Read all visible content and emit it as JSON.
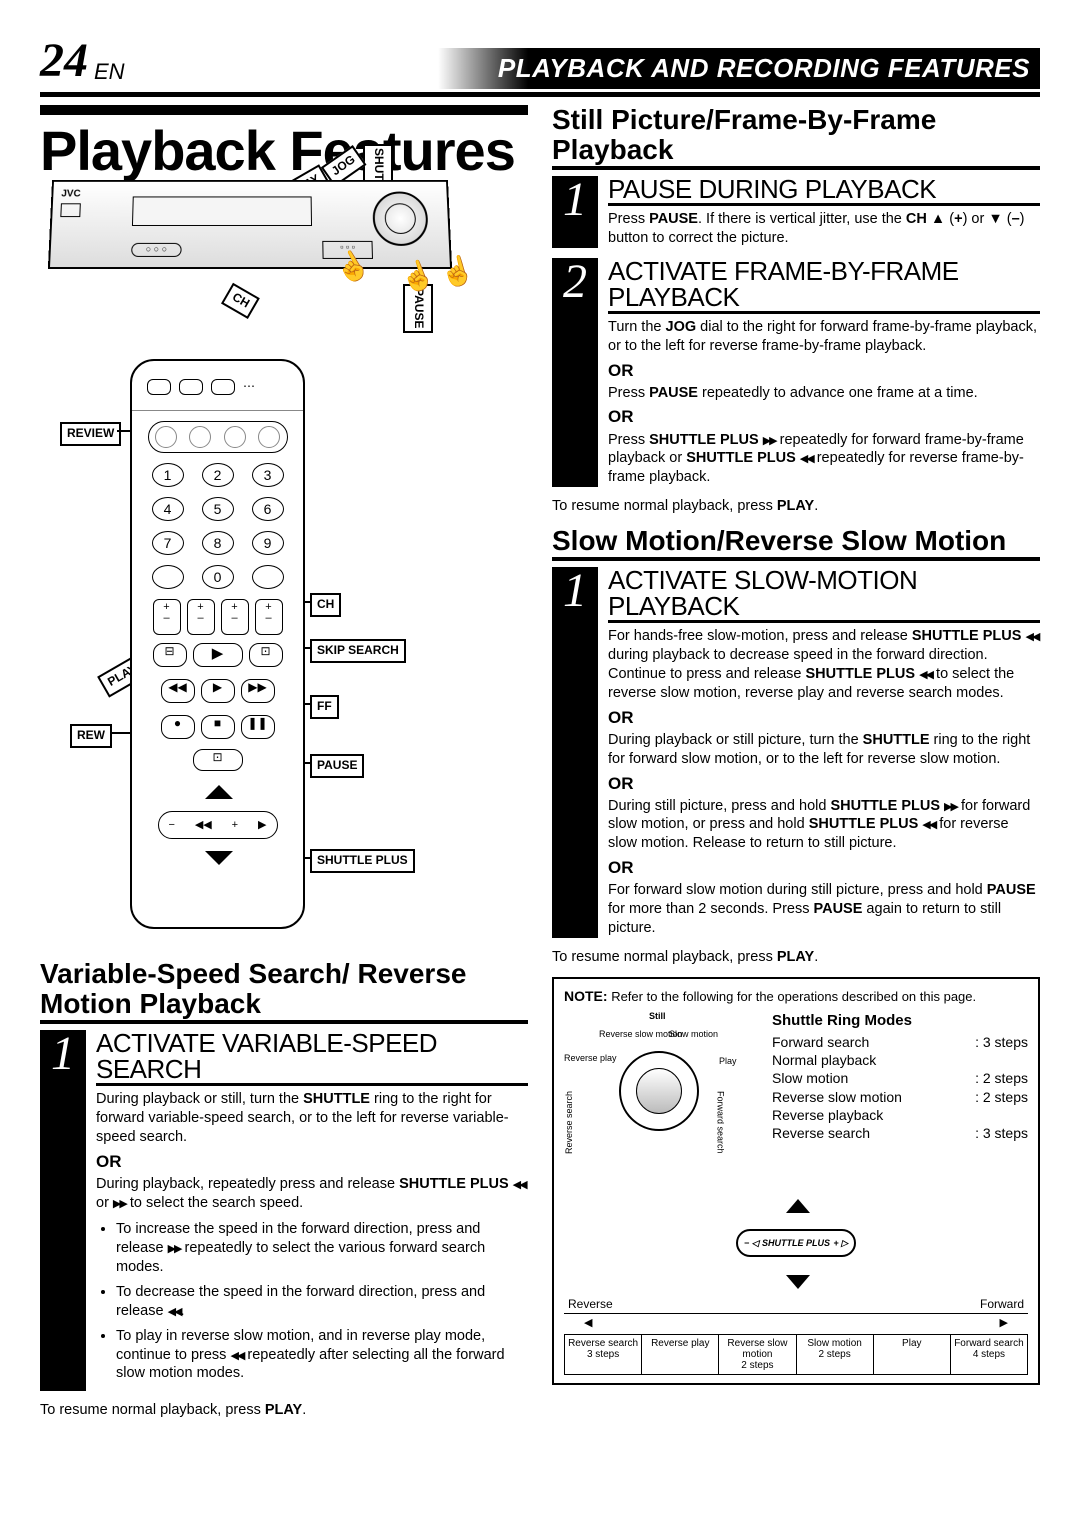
{
  "header": {
    "page_number": "24",
    "language": "EN",
    "title": "PLAYBACK AND RECORDING FEATURES"
  },
  "main_title": "Playback Features",
  "vcr_diagram": {
    "labels": {
      "shuttle": "SHUTTLE",
      "jog": "JOG",
      "play": "PLAY",
      "ch": "CH",
      "pause": "PAUSE"
    },
    "brand": "JVC"
  },
  "remote_diagram": {
    "labels": {
      "review": "REVIEW",
      "ch": "CH",
      "skip_search": "SKIP SEARCH",
      "play": "PLAY",
      "ff": "FF",
      "rew": "REW",
      "pause": "PAUSE",
      "shuttle_plus": "SHUTTLE PLUS"
    },
    "keypad": [
      "1",
      "2",
      "3",
      "4",
      "5",
      "6",
      "7",
      "8",
      "9",
      "",
      "0",
      ""
    ],
    "pm_row": [
      "+",
      "+",
      "+",
      "+",
      "–",
      "–",
      "–",
      "–"
    ]
  },
  "left_section": {
    "heading": "Variable-Speed Search/ Reverse Motion Playback",
    "step1": {
      "num": "1",
      "title": "ACTIVATE VARIABLE-SPEED SEARCH",
      "p1": "During playback or still, turn the <b>SHUTTLE</b> ring to the right for forward variable-speed search, or to the left for reverse variable-speed search.",
      "or": "OR",
      "p2": "During playback, repeatedly press and release <b>SHUTTLE PLUS</b> <span class='inline-icon'>◀◀</span> or <span class='inline-icon'>▶▶</span> to select the search speed.",
      "bullets": [
        "To increase the speed in the forward direction, press and release <span class='inline-icon'>▶▶</span> repeatedly to select the various forward search modes.",
        "To decrease the speed in the forward direction, press and release <span class='inline-icon'>◀◀</span>.",
        "To play in reverse slow motion, and in reverse play mode, continue to press <span class='inline-icon'>◀◀</span> repeatedly after selecting all the forward slow motion modes."
      ]
    },
    "resume": "To resume normal playback, press <b>PLAY</b>."
  },
  "right_section_a": {
    "heading": "Still Picture/Frame-By-Frame Playback",
    "step1": {
      "num": "1",
      "title": "PAUSE DURING PLAYBACK",
      "p1": "Press <b>PAUSE</b>. If there is vertical jitter, use the <b>CH</b> ▲ (<b>+</b>) or ▼ (<b>–</b>) button to correct the picture."
    },
    "step2": {
      "num": "2",
      "title": "ACTIVATE FRAME-BY-FRAME PLAYBACK",
      "p1": "Turn the <b>JOG</b> dial to the right for forward frame-by-frame playback, or to the left for reverse frame-by-frame playback.",
      "or": "OR",
      "p2": "Press <b>PAUSE</b> repeatedly to advance one frame at a time.",
      "p3": "Press <b>SHUTTLE PLUS</b> <span class='inline-icon'>▶▶</span> repeatedly for forward frame-by-frame playback or <b>SHUTTLE PLUS</b> <span class='inline-icon'>◀◀</span> repeatedly for reverse frame-by-frame playback."
    },
    "resume": "To resume normal playback, press <b>PLAY</b>."
  },
  "right_section_b": {
    "heading": "Slow Motion/Reverse Slow Motion",
    "step1": {
      "num": "1",
      "title": "ACTIVATE SLOW-MOTION PLAYBACK",
      "p1": "For hands-free slow-motion, press and release <b>SHUTTLE PLUS</b> <span class='inline-icon'>◀◀</span> during playback to decrease speed in the forward direction. Continue to press and release <b>SHUTTLE PLUS</b> <span class='inline-icon'>◀◀</span> to select the reverse slow motion, reverse play and reverse search modes.",
      "or": "OR",
      "p2": "During playback or still picture, turn the <b>SHUTTLE</b> ring to the right for forward slow motion, or to the left for reverse slow motion.",
      "p3": "During still picture, press and hold <b>SHUTTLE PLUS</b> <span class='inline-icon'>▶▶</span> for forward slow motion, or press and hold <b>SHUTTLE PLUS</b> <span class='inline-icon'>◀◀</span> for reverse slow motion. Release to return to still picture.",
      "p4": "For forward slow motion during still picture, press and hold <b>PAUSE</b> for more than 2 seconds. Press <b>PAUSE</b> again to return to still picture."
    },
    "resume": "To resume normal playback, press <b>PLAY</b>."
  },
  "note_box": {
    "note_label": "NOTE:",
    "intro": "Refer to the following for the operations described on this page.",
    "still_label": "Still",
    "dial_labels": {
      "slow_motion": "Slow motion",
      "reverse_slow_motion": "Reverse slow motion",
      "play": "Play",
      "reverse_play": "Reverse play",
      "forward_search": "Forward search",
      "reverse_search": "Reverse search"
    },
    "modes_title": "Shuttle Ring Modes",
    "modes": [
      {
        "name": "Forward search",
        "steps": ": 3 steps"
      },
      {
        "name": "Normal playback",
        "steps": ""
      },
      {
        "name": "Slow motion",
        "steps": ": 2 steps"
      },
      {
        "name": "Reverse slow motion",
        "steps": ": 2 steps"
      },
      {
        "name": "Reverse playback",
        "steps": ""
      },
      {
        "name": "Reverse search",
        "steps": ": 3 steps"
      }
    ],
    "navpad_label": "SHUTTLE PLUS",
    "axis": {
      "reverse": "Reverse",
      "forward": "Forward"
    },
    "step_boxes": [
      {
        "name": "Reverse search",
        "steps": "3 steps"
      },
      {
        "name": "Reverse play",
        "steps": ""
      },
      {
        "name": "Reverse slow motion",
        "steps": "2 steps"
      },
      {
        "name": "Slow motion",
        "steps": "2 steps"
      },
      {
        "name": "Play",
        "steps": ""
      },
      {
        "name": "Forward search",
        "steps": "4 steps"
      }
    ]
  }
}
